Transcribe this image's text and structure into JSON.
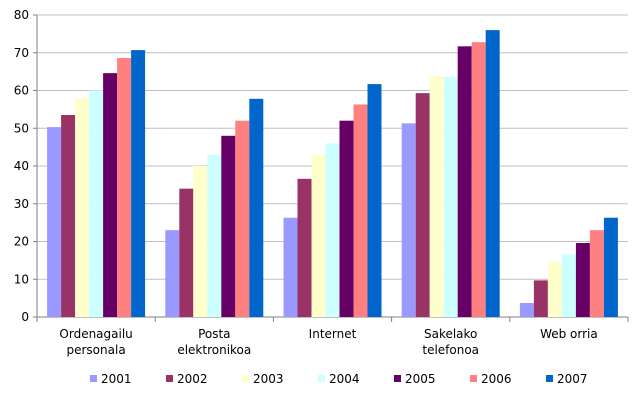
{
  "chart_data": {
    "type": "bar",
    "title": "",
    "xlabel": "",
    "ylabel": "",
    "ylim": [
      0,
      80
    ],
    "yticks": [
      0,
      10,
      20,
      30,
      40,
      50,
      60,
      70,
      80
    ],
    "grid": true,
    "legend_position": "bottom",
    "categories": [
      [
        "Ordenagailu",
        "personala"
      ],
      [
        "Posta",
        "elektronikoa"
      ],
      [
        "Internet"
      ],
      [
        "Sakelako",
        "telefonoa"
      ],
      [
        "Web orria"
      ]
    ],
    "series": [
      {
        "name": "2001",
        "color": "#9999ff",
        "values": [
          50.3,
          23.0,
          26.3,
          51.3,
          3.7
        ]
      },
      {
        "name": "2002",
        "color": "#993366",
        "values": [
          53.5,
          34.0,
          36.6,
          59.3,
          9.7
        ]
      },
      {
        "name": "2003",
        "color": "#ffffcc",
        "values": [
          58.0,
          40.0,
          43.0,
          63.8,
          14.6
        ]
      },
      {
        "name": "2004",
        "color": "#ccffff",
        "values": [
          60.0,
          43.0,
          46.0,
          63.6,
          16.6
        ]
      },
      {
        "name": "2005",
        "color": "#660066",
        "values": [
          64.6,
          48.0,
          52.0,
          71.7,
          19.6
        ]
      },
      {
        "name": "2006",
        "color": "#ff8080",
        "values": [
          68.6,
          52.0,
          56.3,
          72.8,
          23.0
        ]
      },
      {
        "name": "2007",
        "color": "#0066cc",
        "values": [
          70.7,
          57.8,
          61.7,
          76.0,
          26.3
        ]
      }
    ]
  }
}
